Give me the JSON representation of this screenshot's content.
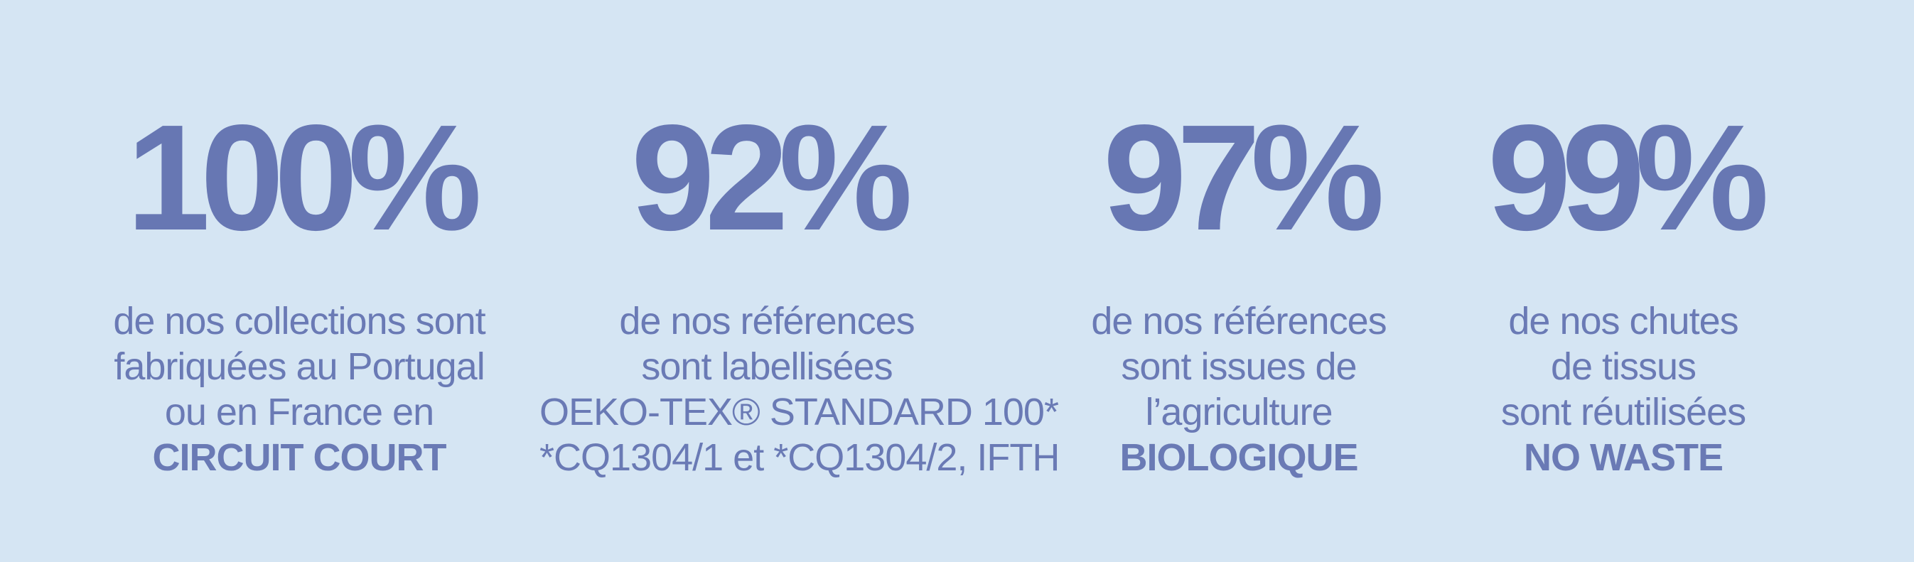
{
  "stats": [
    {
      "value": "100%",
      "lines": [
        "de nos collections sont",
        "fabriquées au Portugal",
        "ou en France en"
      ],
      "highlight": "CIRCUIT COURT"
    },
    {
      "value": "92%",
      "lines": [
        "de nos références",
        "sont labellisées",
        "OEKO-TEX® STANDARD 100*",
        "*CQ1304/1 et *CQ1304/2, IFTH"
      ]
    },
    {
      "value": "97%",
      "lines": [
        "de nos références",
        "sont issues de",
        "l’agriculture"
      ],
      "highlight": "BIOLOGIQUE"
    },
    {
      "value": "99%",
      "lines": [
        "de nos chutes",
        "de tissus",
        "sont réutilisées"
      ],
      "highlight": "NO WASTE"
    }
  ]
}
